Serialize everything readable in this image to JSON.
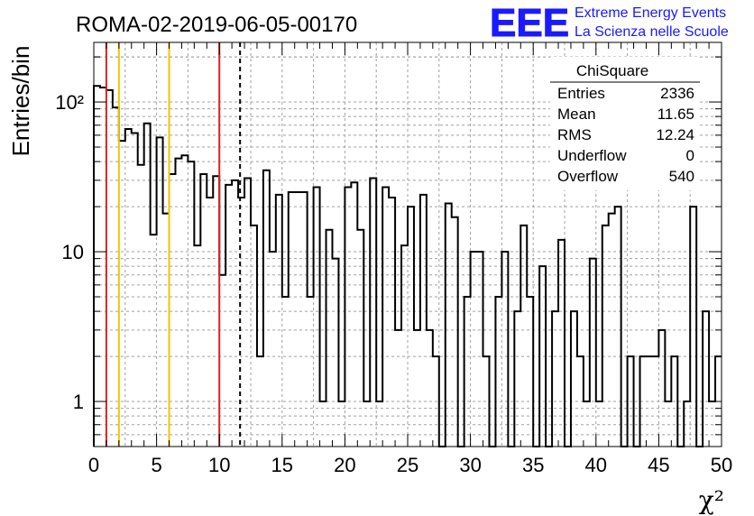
{
  "header": {
    "run_title": "ROMA-02-2019-06-05-00170",
    "logo_text": "EEE",
    "logo_line1": "Extreme Energy Events",
    "logo_line2": "La Scienza nelle Scuole"
  },
  "stats_box": {
    "title": "ChiSquare",
    "rows": [
      {
        "label": "Entries",
        "value": "2336"
      },
      {
        "label": "Mean",
        "value": "11.65"
      },
      {
        "label": "RMS",
        "value": "12.24"
      },
      {
        "label": "Underflow",
        "value": "0"
      },
      {
        "label": "Overflow",
        "value": "540"
      }
    ]
  },
  "colors": {
    "red_line": "#e02020",
    "yellow_line": "#f5c400",
    "logo_blue": "#1a1aff",
    "hist": "#000000",
    "grid": "#a0a0a0"
  },
  "chart_data": {
    "type": "histogram",
    "ylabel": "Entries/bin",
    "xlabel": "χ²",
    "xlim": [
      0,
      50
    ],
    "ylim": [
      0.5,
      250
    ],
    "yscale": "log",
    "grid": true,
    "bin_width": 0.5,
    "x_ticks": [
      "0",
      "5",
      "10",
      "15",
      "20",
      "25",
      "30",
      "35",
      "40",
      "45",
      "50"
    ],
    "y_ticks": [
      {
        "value": 1,
        "label": "1"
      },
      {
        "value": 10,
        "label": "10"
      },
      {
        "value": 100,
        "label": "10²"
      }
    ],
    "values": [
      128,
      125,
      120,
      92,
      55,
      66,
      62,
      38,
      72,
      13,
      58,
      18,
      33,
      42,
      44,
      40,
      11,
      33,
      23,
      32,
      7,
      28,
      30,
      23,
      31,
      15,
      2,
      35,
      10,
      24,
      5,
      25,
      25,
      25,
      5,
      27,
      1,
      14,
      9,
      1,
      27,
      29,
      14,
      1,
      31,
      1,
      27,
      23,
      3,
      11,
      20,
      3,
      24,
      3,
      2,
      0.5,
      21,
      17,
      0.5,
      5,
      10,
      10,
      2,
      0.5,
      5,
      10,
      0.5,
      4,
      15,
      5,
      0.5,
      8,
      0.5,
      4,
      12,
      0.5,
      4,
      2,
      1,
      9,
      1,
      15,
      18,
      20,
      0.5,
      2,
      0.5,
      2,
      2,
      2,
      3,
      1,
      2,
      0.5,
      1,
      20,
      0.5,
      4,
      1,
      2
    ],
    "vertical_lines": [
      {
        "x": 1,
        "color": "red",
        "style": "solid"
      },
      {
        "x": 2,
        "color": "yellow",
        "style": "solid"
      },
      {
        "x": 6,
        "color": "yellow",
        "style": "solid"
      },
      {
        "x": 10,
        "color": "red",
        "style": "solid"
      },
      {
        "x": 11.65,
        "color": "black",
        "style": "dashed"
      }
    ]
  }
}
